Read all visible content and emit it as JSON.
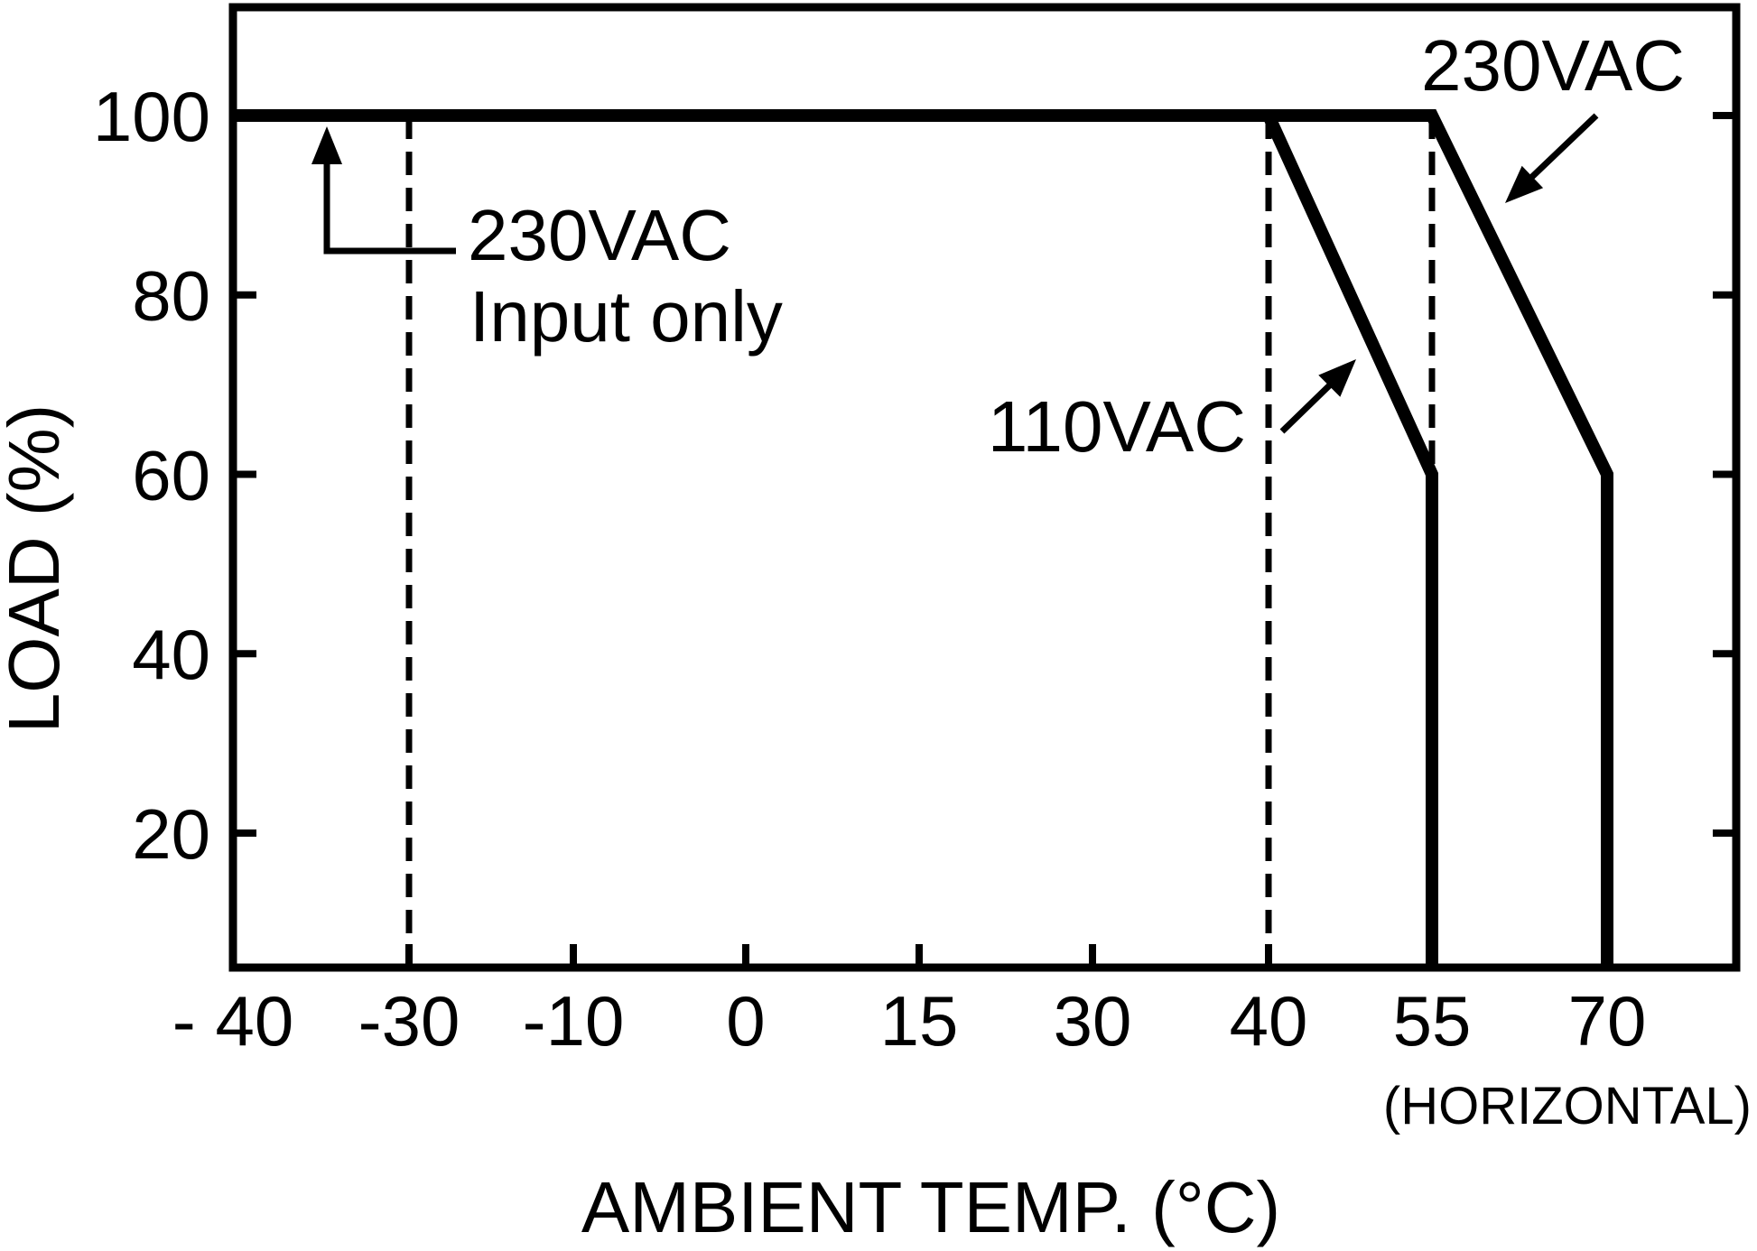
{
  "chart_data": {
    "type": "line",
    "title": "",
    "xlabel": "AMBIENT TEMP. (°C)",
    "ylabel": "LOAD (%)",
    "x_note": "(HORIZONTAL)",
    "x_ticks": [
      "- 40",
      "-30",
      "-10",
      "0",
      "15",
      "30",
      "40",
      "55",
      "70"
    ],
    "y_ticks": [
      "20",
      "40",
      "60",
      "80",
      "100"
    ],
    "ylim": [
      5,
      113
    ],
    "grid": false,
    "series": [
      {
        "name": "230VAC Input only",
        "style": "dashed",
        "points": [
          {
            "x": "- 40",
            "y": 100
          },
          {
            "x": "-30",
            "y": 100
          }
        ]
      },
      {
        "name": "110VAC",
        "style": "solid",
        "points": [
          {
            "x": "- 40",
            "y": 100
          },
          {
            "x": "40",
            "y": 100
          },
          {
            "x": "55",
            "y": 60
          },
          {
            "x": "55",
            "y": 5
          }
        ]
      },
      {
        "name": "230VAC",
        "style": "solid",
        "points": [
          {
            "x": "- 40",
            "y": 100
          },
          {
            "x": "55",
            "y": 100
          },
          {
            "x": "70",
            "y": 60
          },
          {
            "x": "70",
            "y": 5
          }
        ]
      }
    ],
    "reference_lines_x": [
      "-30",
      "40",
      "55"
    ],
    "annotations": [
      {
        "lines": [
          "230VAC",
          "Input only"
        ],
        "target": {
          "x": "- 40",
          "y": 100
        }
      },
      {
        "lines": [
          "110VAC"
        ],
        "target": {
          "x": "40",
          "y": 100
        }
      },
      {
        "lines": [
          "230VAC"
        ],
        "target": {
          "x": "55",
          "y": 100
        }
      }
    ],
    "colors": {
      "line": "#000000",
      "background": "#ffffff"
    }
  }
}
